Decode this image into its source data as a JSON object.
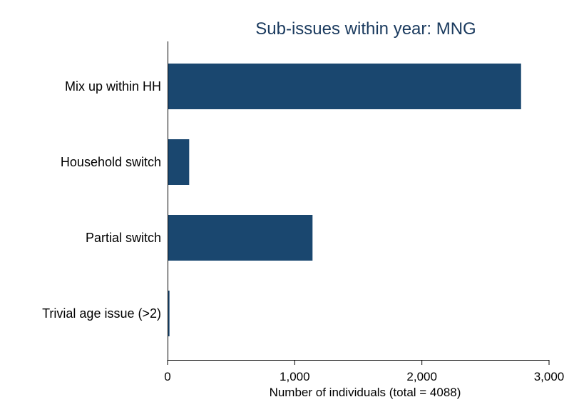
{
  "chart_data": {
    "type": "bar",
    "orientation": "horizontal",
    "title": "Sub-issues within year: MNG",
    "xlabel": "Number of individuals (total = 4088)",
    "ylabel": "",
    "categories": [
      "Mix up within HH",
      "Household switch",
      "Partial switch",
      "Trivial age issue (>2)"
    ],
    "values": [
      2780,
      170,
      1140,
      15
    ],
    "xlim": [
      0,
      3000
    ],
    "xticks": [
      0,
      1000,
      2000,
      3000
    ],
    "xtick_labels": [
      "0",
      "1,000",
      "2,000",
      "3,000"
    ],
    "grid": false,
    "legend": "none",
    "bar_color": "#1a476f"
  }
}
